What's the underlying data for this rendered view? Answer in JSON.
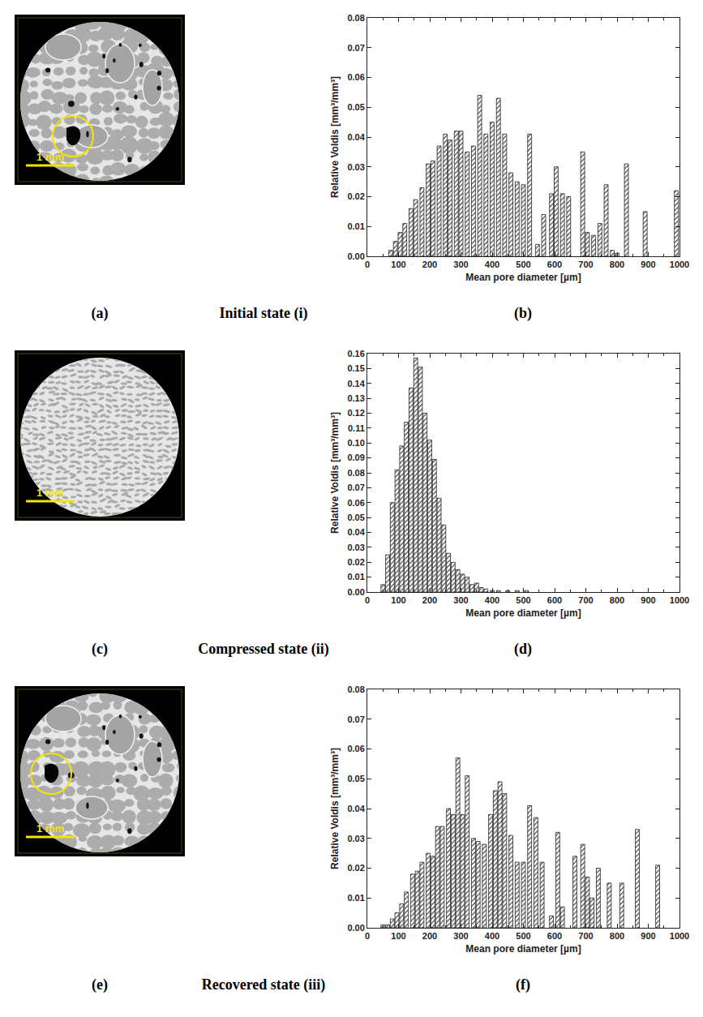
{
  "chart_data": [
    {
      "type": "bar",
      "xlabel": "Mean pore diameter [µm]",
      "ylabel": "Relative Voldis [mm³/mm³]",
      "x": [
        75,
        90,
        105,
        120,
        140,
        155,
        175,
        195,
        210,
        230,
        250,
        265,
        285,
        300,
        320,
        340,
        360,
        380,
        400,
        420,
        440,
        460,
        480,
        500,
        520,
        545,
        565,
        590,
        605,
        625,
        645,
        690,
        705,
        725,
        745,
        765,
        785,
        800,
        830,
        890,
        990
      ],
      "values": [
        0.002,
        0.005,
        0.008,
        0.011,
        0.016,
        0.019,
        0.023,
        0.031,
        0.032,
        0.037,
        0.041,
        0.039,
        0.042,
        0.042,
        0.035,
        0.037,
        0.054,
        0.041,
        0.045,
        0.053,
        0.041,
        0.028,
        0.025,
        0.024,
        0.041,
        0.004,
        0.014,
        0.021,
        0.03,
        0.021,
        0.02,
        0.035,
        0.008,
        0.007,
        0.011,
        0.024,
        0.002,
        0.001,
        0.031,
        0.015,
        0.022
      ],
      "xlim": [
        0,
        1000
      ],
      "xticks": [
        0,
        100,
        200,
        300,
        400,
        500,
        600,
        700,
        800,
        900,
        1000
      ],
      "ylim": [
        0,
        0.08
      ],
      "yticks": [
        {
          "value": 0,
          "label": "0.00"
        },
        {
          "value": 0.01,
          "label": "0.01"
        },
        {
          "value": 0.02,
          "label": "0.02"
        },
        {
          "value": 0.03,
          "label": "0.03"
        },
        {
          "value": 0.04,
          "label": "0.04"
        },
        {
          "value": 0.05,
          "label": "0.05"
        },
        {
          "value": 0.06,
          "label": "0.06"
        },
        {
          "value": 0.07,
          "label": "0.07"
        },
        {
          "value": 0.08,
          "label": "0.08"
        }
      ],
      "grid": false
    },
    {
      "type": "bar",
      "xlabel": "Mean pore diameter [µm]",
      "ylabel": "Relative Voldis [mm³/mm³]",
      "x": [
        50,
        65,
        80,
        95,
        110,
        125,
        140,
        155,
        170,
        185,
        200,
        215,
        230,
        245,
        260,
        275,
        290,
        305,
        320,
        335,
        350,
        365,
        380,
        400,
        420,
        450,
        480,
        510
      ],
      "values": [
        0.005,
        0.025,
        0.06,
        0.082,
        0.098,
        0.114,
        0.137,
        0.157,
        0.151,
        0.12,
        0.102,
        0.089,
        0.063,
        0.045,
        0.026,
        0.02,
        0.015,
        0.012,
        0.01,
        0.005,
        0.006,
        0.003,
        0.002,
        0.001,
        0.001,
        0.001,
        0.001,
        0.001
      ],
      "xlim": [
        0,
        1000
      ],
      "xticks": [
        0,
        100,
        200,
        300,
        400,
        500,
        600,
        700,
        800,
        900,
        1000
      ],
      "ylim": [
        0,
        0.16
      ],
      "yticks": [
        {
          "value": 0,
          "label": "0.00"
        },
        {
          "value": 0.01,
          "label": "0.01"
        },
        {
          "value": 0.02,
          "label": "0.02"
        },
        {
          "value": 0.03,
          "label": "0.03"
        },
        {
          "value": 0.04,
          "label": "0.04"
        },
        {
          "value": 0.05,
          "label": "0.05"
        },
        {
          "value": 0.06,
          "label": "0.06"
        },
        {
          "value": 0.07,
          "label": "0.07"
        },
        {
          "value": 0.08,
          "label": "0.08"
        },
        {
          "value": 0.09,
          "label": "0.09"
        },
        {
          "value": 0.1,
          "label": "0.10"
        },
        {
          "value": 0.11,
          "label": "0.11"
        },
        {
          "value": 0.12,
          "label": "0.12"
        },
        {
          "value": 0.13,
          "label": "0.13"
        },
        {
          "value": 0.14,
          "label": "0.14"
        },
        {
          "value": 0.15,
          "label": "0.15"
        },
        {
          "value": 0.16,
          "label": "0.16"
        }
      ],
      "grid": false
    },
    {
      "type": "bar",
      "xlabel": "Mean pore diameter [µm]",
      "ylabel": "Relative Voldis [mm³/mm³]",
      "x": [
        50,
        65,
        80,
        95,
        110,
        125,
        145,
        160,
        175,
        195,
        210,
        225,
        240,
        260,
        275,
        290,
        305,
        320,
        340,
        355,
        375,
        395,
        410,
        425,
        440,
        460,
        480,
        500,
        520,
        540,
        560,
        590,
        610,
        625,
        665,
        690,
        705,
        720,
        740,
        775,
        815,
        865,
        930
      ],
      "values": [
        0.001,
        0.001,
        0.003,
        0.005,
        0.008,
        0.012,
        0.018,
        0.019,
        0.022,
        0.025,
        0.024,
        0.034,
        0.034,
        0.04,
        0.038,
        0.057,
        0.038,
        0.051,
        0.03,
        0.029,
        0.028,
        0.038,
        0.046,
        0.049,
        0.045,
        0.031,
        0.022,
        0.022,
        0.041,
        0.037,
        0.022,
        0.004,
        0.032,
        0.007,
        0.024,
        0.028,
        0.017,
        0.01,
        0.02,
        0.015,
        0.015,
        0.033,
        0.021
      ],
      "xlim": [
        0,
        1000
      ],
      "xticks": [
        0,
        100,
        200,
        300,
        400,
        500,
        600,
        700,
        800,
        900,
        1000
      ],
      "ylim": [
        0,
        0.08
      ],
      "yticks": [
        {
          "value": 0,
          "label": "0.00"
        },
        {
          "value": 0.01,
          "label": "0.01"
        },
        {
          "value": 0.02,
          "label": "0.02"
        },
        {
          "value": 0.03,
          "label": "0.03"
        },
        {
          "value": 0.04,
          "label": "0.04"
        },
        {
          "value": 0.05,
          "label": "0.05"
        },
        {
          "value": 0.06,
          "label": "0.06"
        },
        {
          "value": 0.07,
          "label": "0.07"
        },
        {
          "value": 0.08,
          "label": "0.08"
        }
      ],
      "grid": false
    }
  ],
  "images": [
    {
      "scale_bar": "1 mm",
      "highlight_circle": true
    },
    {
      "scale_bar": "1 mm",
      "highlight_circle": false
    },
    {
      "scale_bar": "1 mm",
      "highlight_circle": true
    }
  ],
  "captions": [
    {
      "image_letter": "(a)",
      "state": "Initial state (i)",
      "chart_letter": "(b)"
    },
    {
      "image_letter": "(c)",
      "state": "Compressed state (ii)",
      "chart_letter": "(d)"
    },
    {
      "image_letter": "(e)",
      "state": "Recovered state (iii)",
      "chart_letter": "(f)"
    }
  ]
}
